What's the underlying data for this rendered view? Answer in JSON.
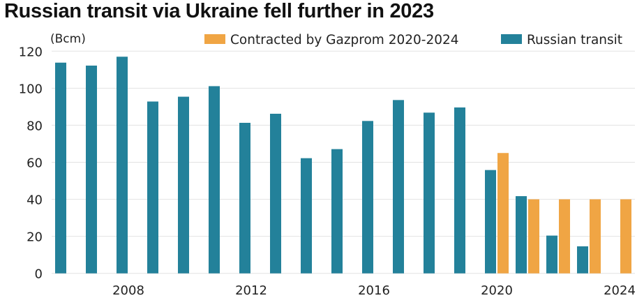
{
  "chart_data": {
    "type": "bar",
    "title": "Russian transit via Ukraine fell further in 2023",
    "ylabel": "(Bcm)",
    "xlabel": "",
    "ylim": [
      0,
      120
    ],
    "yticks": [
      0,
      20,
      40,
      60,
      80,
      100,
      120
    ],
    "grid": true,
    "legend_position": "top-right",
    "categories": [
      2006,
      2007,
      2008,
      2009,
      2010,
      2011,
      2012,
      2013,
      2014,
      2015,
      2016,
      2017,
      2018,
      2019,
      2020,
      2021,
      2022,
      2023,
      2024
    ],
    "xtick_labels": [
      "2008",
      "2012",
      "2016",
      "2020",
      "2024"
    ],
    "series": [
      {
        "name": "Contracted by Gazprom 2020-2024",
        "color": "#F0A544",
        "values": [
          null,
          null,
          null,
          null,
          null,
          null,
          null,
          null,
          null,
          null,
          null,
          null,
          null,
          null,
          65,
          40,
          40,
          40,
          40
        ]
      },
      {
        "name": "Russian transit",
        "color": "#23819A",
        "values": [
          113.8,
          112.2,
          117,
          92.8,
          95.4,
          101.1,
          81.3,
          86.2,
          62.2,
          67.1,
          82.3,
          93.6,
          86.8,
          89.6,
          55.8,
          41.7,
          20.4,
          14.6,
          null
        ]
      }
    ]
  }
}
